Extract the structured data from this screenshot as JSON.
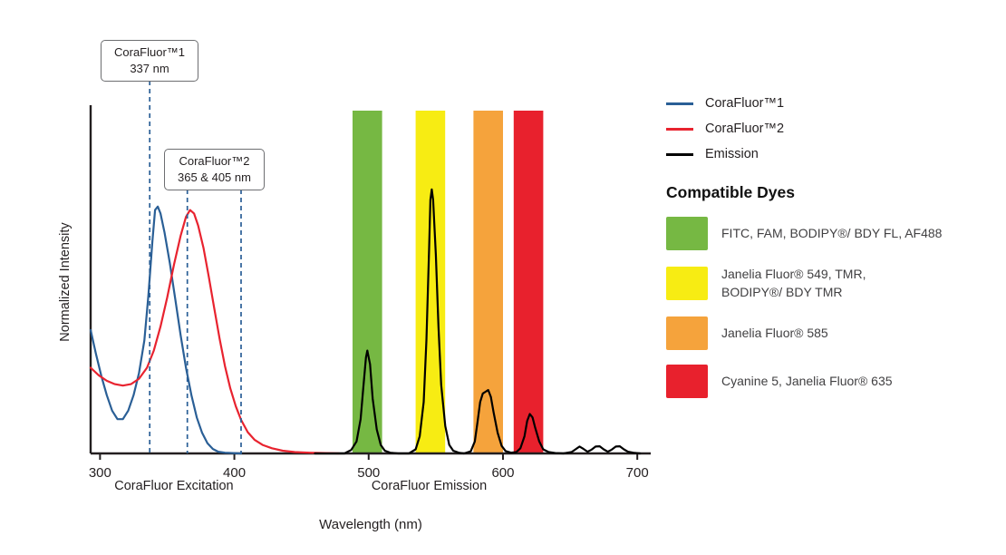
{
  "chart_data": {
    "type": "line",
    "xlabel": "Wavelength (nm)",
    "ylabel": "Normalized Intensity",
    "xlim": [
      293,
      710
    ],
    "ylim": [
      0,
      1
    ],
    "x_ticks": [
      300,
      400,
      500,
      600,
      700
    ],
    "grid": false,
    "legend_position": "right",
    "axis_group_labels": [
      {
        "label": "CoraFluor Excitation",
        "center_nm": 355
      },
      {
        "label": "CoraFluor Emission",
        "center_nm": 545
      }
    ],
    "bands": [
      {
        "name": "green-filter",
        "x0": 488,
        "x1": 510,
        "color": "#76b843"
      },
      {
        "name": "yellow-filter",
        "x0": 535,
        "x1": 557,
        "color": "#f7ec13"
      },
      {
        "name": "orange-filter",
        "x0": 578,
        "x1": 600,
        "color": "#f5a33c"
      },
      {
        "name": "red-filter",
        "x0": 608,
        "x1": 630,
        "color": "#e8212d"
      }
    ],
    "annotations": [
      {
        "line1": "CoraFluor™1",
        "line2": "337 nm",
        "lines_nm": [
          337
        ]
      },
      {
        "line1": "CoraFluor™2",
        "line2": "365 & 405 nm",
        "lines_nm": [
          365,
          405
        ]
      }
    ],
    "series": [
      {
        "name": "CoraFluor™1",
        "color": "#2a5f96",
        "points": [
          [
            293,
            0.36
          ],
          [
            297,
            0.29
          ],
          [
            301,
            0.225
          ],
          [
            305,
            0.17
          ],
          [
            309,
            0.125
          ],
          [
            313,
            0.1
          ],
          [
            317,
            0.1
          ],
          [
            321,
            0.125
          ],
          [
            325,
            0.17
          ],
          [
            329,
            0.235
          ],
          [
            333,
            0.33
          ],
          [
            336,
            0.46
          ],
          [
            339,
            0.62
          ],
          [
            341,
            0.71
          ],
          [
            343,
            0.72
          ],
          [
            345,
            0.7
          ],
          [
            348,
            0.645
          ],
          [
            352,
            0.555
          ],
          [
            356,
            0.45
          ],
          [
            360,
            0.345
          ],
          [
            364,
            0.25
          ],
          [
            368,
            0.17
          ],
          [
            372,
            0.105
          ],
          [
            376,
            0.06
          ],
          [
            380,
            0.03
          ],
          [
            384,
            0.013
          ],
          [
            388,
            0.005
          ],
          [
            393,
            0.002
          ],
          [
            399,
            0.001
          ],
          [
            405,
            0
          ]
        ]
      },
      {
        "name": "CoraFluor™2",
        "color": "#e8232f",
        "points": [
          [
            293,
            0.25
          ],
          [
            299,
            0.228
          ],
          [
            305,
            0.212
          ],
          [
            311,
            0.202
          ],
          [
            317,
            0.198
          ],
          [
            323,
            0.202
          ],
          [
            329,
            0.218
          ],
          [
            335,
            0.25
          ],
          [
            340,
            0.3
          ],
          [
            345,
            0.37
          ],
          [
            350,
            0.455
          ],
          [
            355,
            0.55
          ],
          [
            360,
            0.635
          ],
          [
            364,
            0.69
          ],
          [
            367,
            0.71
          ],
          [
            370,
            0.7
          ],
          [
            373,
            0.665
          ],
          [
            377,
            0.6
          ],
          [
            381,
            0.515
          ],
          [
            385,
            0.425
          ],
          [
            389,
            0.335
          ],
          [
            393,
            0.255
          ],
          [
            397,
            0.19
          ],
          [
            401,
            0.138
          ],
          [
            405,
            0.098
          ],
          [
            410,
            0.062
          ],
          [
            415,
            0.04
          ],
          [
            421,
            0.025
          ],
          [
            428,
            0.015
          ],
          [
            436,
            0.008
          ],
          [
            445,
            0.004
          ],
          [
            456,
            0.002
          ],
          [
            468,
            0.001
          ],
          [
            478,
            0
          ]
        ]
      },
      {
        "name": "Emission",
        "color": "#000000",
        "points": [
          [
            460,
            0
          ],
          [
            482,
            0
          ],
          [
            487,
            0.01
          ],
          [
            491,
            0.035
          ],
          [
            494,
            0.1
          ],
          [
            496,
            0.19
          ],
          [
            498,
            0.28
          ],
          [
            499,
            0.3
          ],
          [
            501,
            0.26
          ],
          [
            503,
            0.16
          ],
          [
            506,
            0.07
          ],
          [
            509,
            0.025
          ],
          [
            512,
            0.008
          ],
          [
            516,
            0.002
          ],
          [
            522,
            0
          ],
          [
            530,
            0
          ],
          [
            535,
            0.012
          ],
          [
            538,
            0.05
          ],
          [
            541,
            0.15
          ],
          [
            543,
            0.33
          ],
          [
            545,
            0.6
          ],
          [
            546,
            0.74
          ],
          [
            547,
            0.77
          ],
          [
            548,
            0.74
          ],
          [
            550,
            0.58
          ],
          [
            552,
            0.37
          ],
          [
            554,
            0.2
          ],
          [
            557,
            0.08
          ],
          [
            560,
            0.025
          ],
          [
            563,
            0.008
          ],
          [
            567,
            0.002
          ],
          [
            571,
            0
          ],
          [
            576,
            0.006
          ],
          [
            579,
            0.035
          ],
          [
            581,
            0.09
          ],
          [
            583,
            0.15
          ],
          [
            585,
            0.175
          ],
          [
            587,
            0.18
          ],
          [
            589,
            0.185
          ],
          [
            591,
            0.165
          ],
          [
            593,
            0.12
          ],
          [
            596,
            0.06
          ],
          [
            599,
            0.022
          ],
          [
            602,
            0.007
          ],
          [
            606,
            0.002
          ],
          [
            610,
            0.004
          ],
          [
            613,
            0.015
          ],
          [
            616,
            0.05
          ],
          [
            618,
            0.095
          ],
          [
            620,
            0.115
          ],
          [
            622,
            0.105
          ],
          [
            624,
            0.075
          ],
          [
            627,
            0.035
          ],
          [
            630,
            0.012
          ],
          [
            634,
            0.004
          ],
          [
            639,
            0.001
          ],
          [
            645,
            0
          ],
          [
            651,
            0.004
          ],
          [
            654,
            0.012
          ],
          [
            657,
            0.02
          ],
          [
            660,
            0.013
          ],
          [
            663,
            0.005
          ],
          [
            666,
            0.011
          ],
          [
            669,
            0.02
          ],
          [
            672,
            0.021
          ],
          [
            675,
            0.012
          ],
          [
            678,
            0.005
          ],
          [
            681,
            0.011
          ],
          [
            684,
            0.02
          ],
          [
            687,
            0.021
          ],
          [
            690,
            0.012
          ],
          [
            693,
            0.005
          ],
          [
            697,
            0.002
          ],
          [
            702,
            0
          ]
        ]
      }
    ]
  },
  "legend": {
    "items": [
      {
        "label": "CoraFluor™1",
        "color": "#2a5f96"
      },
      {
        "label": "CoraFluor™2",
        "color": "#e8232f"
      },
      {
        "label": "Emission",
        "color": "#000000"
      }
    ]
  },
  "compatible_dyes": {
    "heading": "Compatible Dyes",
    "items": [
      {
        "label": "FITC, FAM, BODIPY®/ BDY FL, AF488",
        "color": "#76b843"
      },
      {
        "label": "Janelia Fluor® 549, TMR,\nBODIPY®/ BDY TMR",
        "color": "#f7ec13"
      },
      {
        "label": "Janelia Fluor® 585",
        "color": "#f5a33c"
      },
      {
        "label": "Cyanine 5, Janelia Fluor® 635",
        "color": "#e8212d"
      }
    ]
  }
}
